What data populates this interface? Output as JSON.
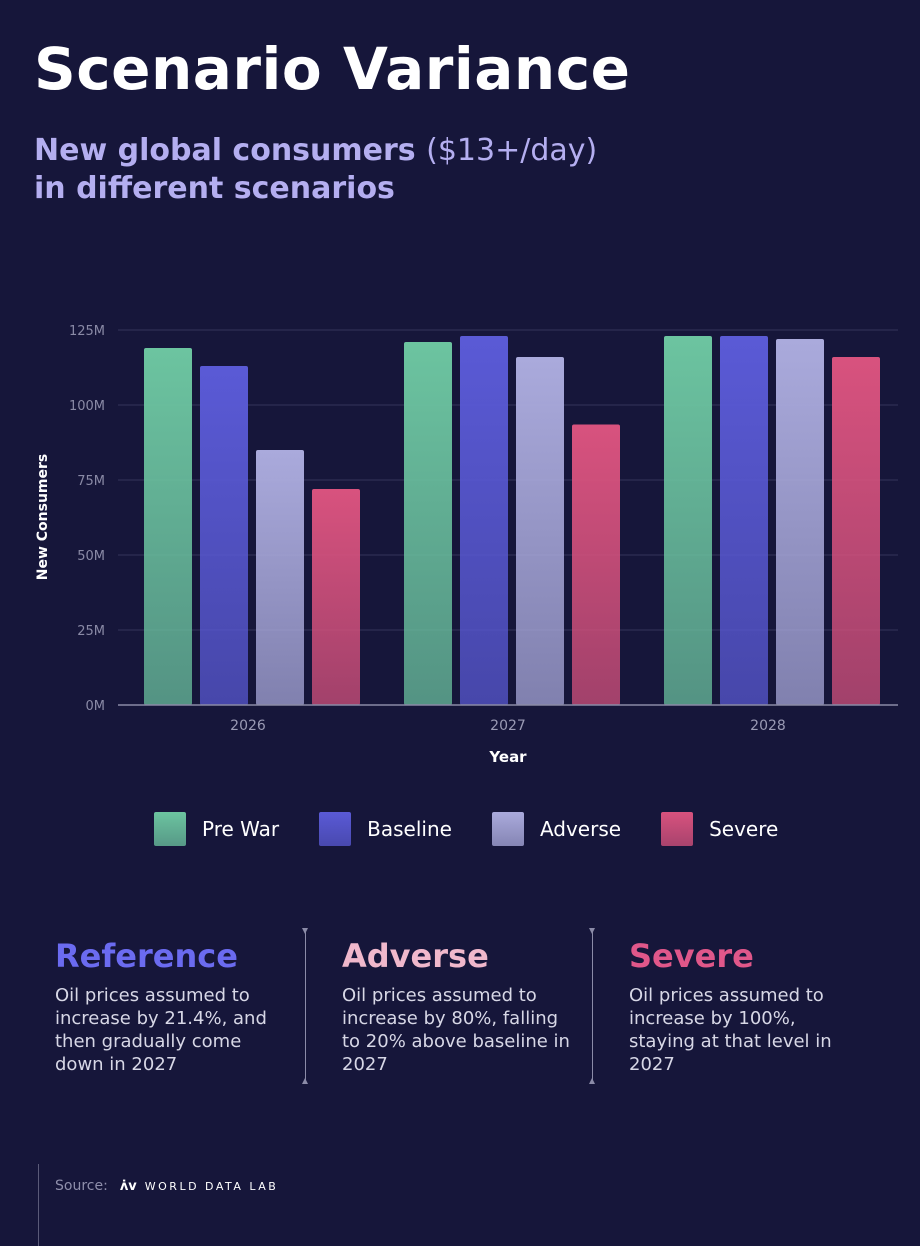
{
  "header": {
    "title": "Scenario Variance",
    "subtitle_bold": "New global consumers",
    "subtitle_light": "($13+/day)",
    "subtitle_line2": "in different scenarios"
  },
  "chart_data": {
    "type": "bar",
    "categories": [
      "2026",
      "2027",
      "2028"
    ],
    "series": [
      {
        "name": "Pre War",
        "values": [
          119,
          121,
          123
        ],
        "color": "#6cc4a0"
      },
      {
        "name": "Baseline",
        "values": [
          113,
          123,
          123
        ],
        "color": "#5a5ad6"
      },
      {
        "name": "Adverse",
        "values": [
          85,
          116,
          122
        ],
        "color": "#aaaadc"
      },
      {
        "name": "Severe",
        "values": [
          72,
          93.5,
          116
        ],
        "color": "#d8527e"
      }
    ],
    "yticks": [
      "0M",
      "25M",
      "50M",
      "75M",
      "100M",
      "125M"
    ],
    "ylim": [
      0,
      125
    ],
    "xlabel": "Year",
    "ylabel": "New Consumers",
    "grid": true,
    "legend_position": "bottom"
  },
  "notes": [
    {
      "title": "Reference",
      "text": "Oil prices assumed to increase by 21.4%, and then gradually come down in 2027",
      "color": "#6b6bf0"
    },
    {
      "title": "Adverse",
      "text": "Oil prices assumed to increase by 80%, falling to 20% above baseline in 2027",
      "color": "#f0b8cc"
    },
    {
      "title": "Severe",
      "text": "Oil prices assumed to increase by 100%, staying at that level in 2027",
      "color": "#e0578a"
    }
  ],
  "source": {
    "label": "Source:",
    "logo": "ʌ̇v",
    "name": "WORLD DATA LAB"
  }
}
